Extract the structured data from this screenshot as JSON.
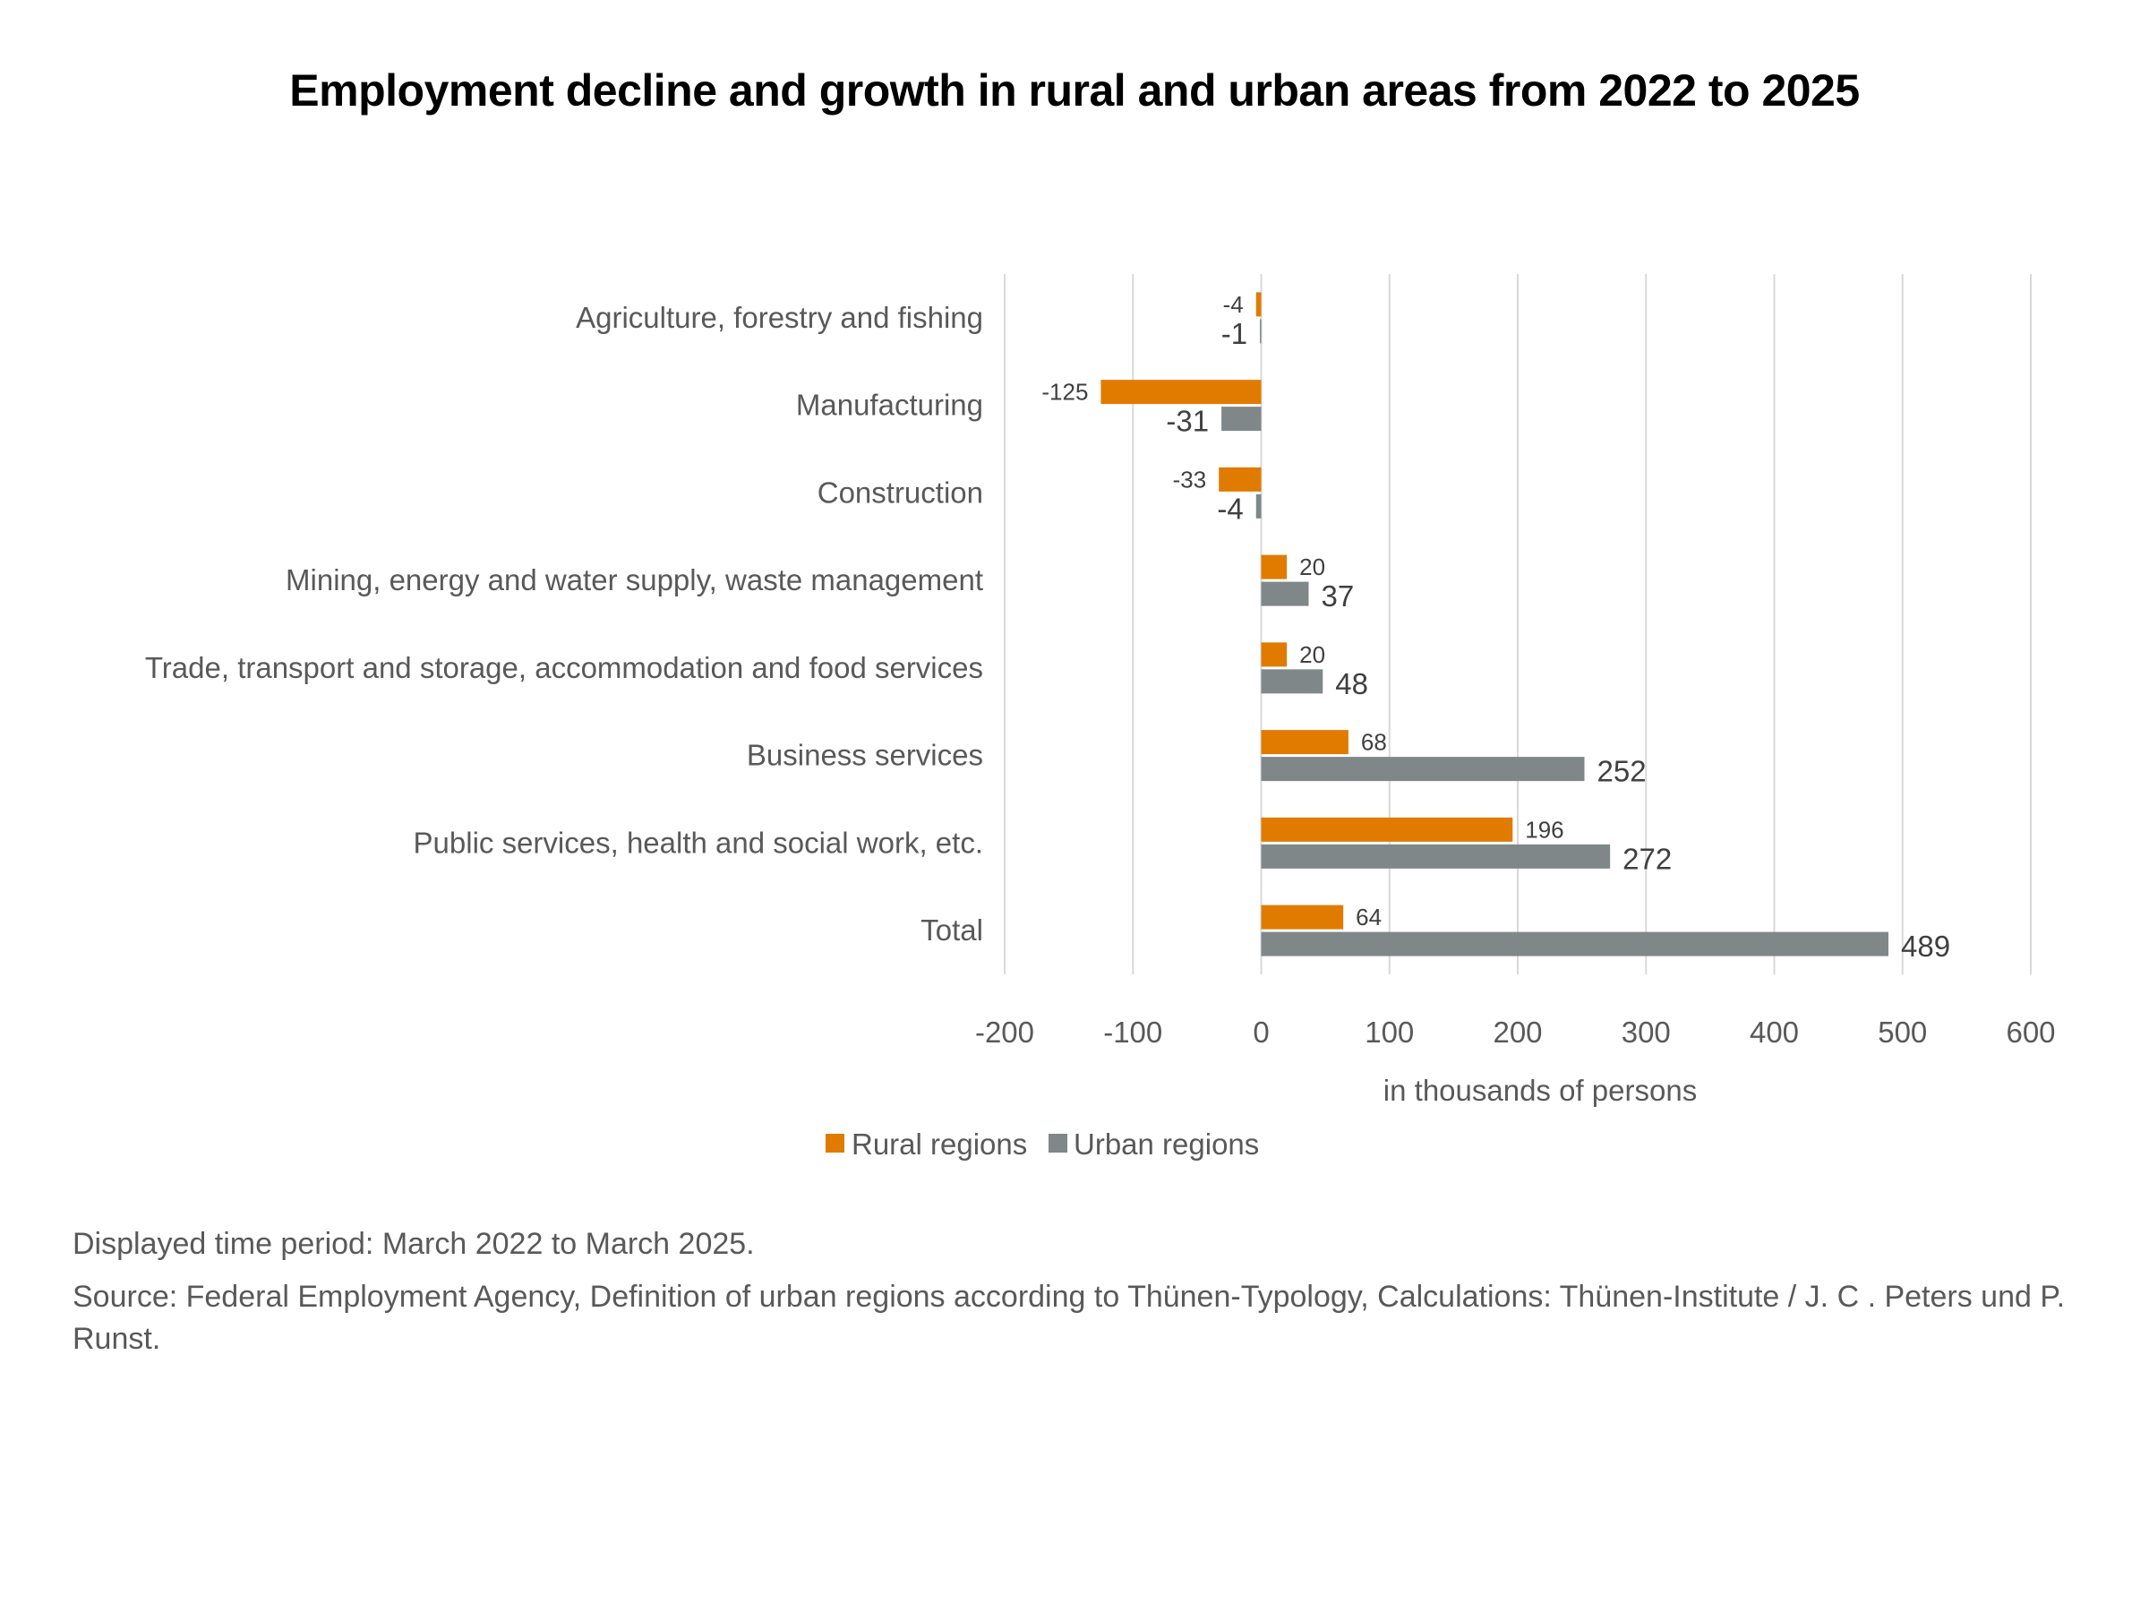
{
  "title": "Employment decline and growth in rural and urban areas from 2022 to 2025",
  "chart_data": {
    "type": "bar",
    "orientation": "horizontal",
    "title": "Employment decline and growth in rural and urban areas from 2022 to 2025",
    "categories": [
      "Agriculture, forestry and fishing",
      "Manufacturing",
      "Construction",
      "Mining, energy and water supply, waste management",
      "Trade, transport and storage, accommodation and food services",
      "Business services",
      "Public services, health and social work, etc.",
      "Total"
    ],
    "series": [
      {
        "name": "Rural regions",
        "color": "#E07B00",
        "values": [
          -4,
          -125,
          -33,
          20,
          20,
          68,
          196,
          64
        ]
      },
      {
        "name": "Urban regions",
        "color": "#7F8789",
        "values": [
          -1,
          -31,
          -4,
          37,
          48,
          252,
          272,
          489
        ]
      }
    ],
    "xlabel": "in thousands of persons",
    "ylabel": "",
    "xlim": [
      -200,
      600
    ],
    "xticks": [
      -200,
      -100,
      0,
      100,
      200,
      300,
      400,
      500,
      600
    ],
    "xtick_labels": [
      "-200",
      "-100",
      "0",
      "100",
      "200",
      "300",
      "400",
      "500",
      "600"
    ],
    "grid": true,
    "legend": "bottom-center",
    "data_labels": true
  },
  "footer": {
    "period": "Displayed time period: March 2022 to March 2025.",
    "source": "Source: Federal Employment Agency, Definition of urban regions according to Thünen-Typology, Calculations: Thünen-Institute / J. C . Peters und P. Runst."
  }
}
